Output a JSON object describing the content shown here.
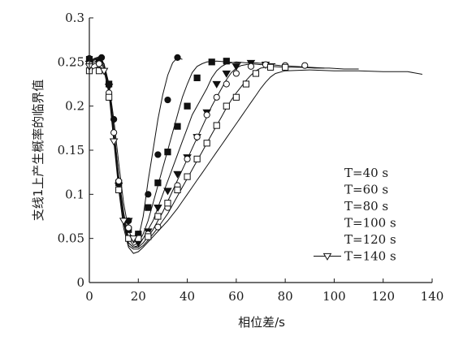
{
  "chart_data": {
    "type": "line",
    "xlabel": "相位差/s",
    "ylabel": "支线1上产生概率的临界值",
    "xlim": [
      0,
      140
    ],
    "ylim": [
      0,
      0.3
    ],
    "x_ticks": [
      0,
      20,
      40,
      60,
      80,
      100,
      120,
      140
    ],
    "y_ticks": [
      0,
      0.05,
      0.1,
      0.15,
      0.2,
      0.25,
      0.3
    ],
    "x_tick_labels": [
      "0",
      "20",
      "40",
      "60",
      "80",
      "100",
      "120",
      "140"
    ],
    "y_tick_labels": [
      "0",
      "0.05",
      "0.1",
      "0.15",
      "0.2",
      "0.25",
      "0.3"
    ],
    "legend_position": "right",
    "series": [
      {
        "name": "T=40 s",
        "marker": "filled-circle",
        "line": [
          [
            0,
            0.25
          ],
          [
            2,
            0.254
          ],
          [
            4,
            0.256
          ],
          [
            6,
            0.248
          ],
          [
            8,
            0.225
          ],
          [
            10,
            0.185
          ],
          [
            12,
            0.135
          ],
          [
            14,
            0.09
          ],
          [
            16,
            0.06
          ],
          [
            18,
            0.045
          ],
          [
            20,
            0.05
          ],
          [
            22,
            0.075
          ],
          [
            24,
            0.115
          ],
          [
            26,
            0.15
          ],
          [
            28,
            0.185
          ],
          [
            30,
            0.213
          ],
          [
            32,
            0.235
          ],
          [
            34,
            0.249
          ],
          [
            36,
            0.255
          ],
          [
            38,
            0.253
          ]
        ],
        "markers": [
          [
            0,
            0.254
          ],
          [
            5,
            0.255
          ],
          [
            8,
            0.225
          ],
          [
            10,
            0.185
          ],
          [
            12,
            0.113
          ],
          [
            16,
            0.07
          ],
          [
            20,
            0.055
          ],
          [
            24,
            0.1
          ],
          [
            28,
            0.145
          ],
          [
            32,
            0.207
          ],
          [
            36,
            0.255
          ]
        ]
      },
      {
        "name": "T=60 s",
        "marker": "filled-square",
        "line": [
          [
            0,
            0.25
          ],
          [
            2,
            0.253
          ],
          [
            4,
            0.255
          ],
          [
            6,
            0.247
          ],
          [
            8,
            0.225
          ],
          [
            10,
            0.175
          ],
          [
            12,
            0.12
          ],
          [
            14,
            0.08
          ],
          [
            16,
            0.05
          ],
          [
            18,
            0.042
          ],
          [
            20,
            0.045
          ],
          [
            22,
            0.055
          ],
          [
            24,
            0.07
          ],
          [
            26,
            0.09
          ],
          [
            28,
            0.11
          ],
          [
            30,
            0.13
          ],
          [
            32,
            0.15
          ],
          [
            34,
            0.17
          ],
          [
            36,
            0.19
          ],
          [
            38,
            0.21
          ],
          [
            40,
            0.225
          ],
          [
            42,
            0.238
          ],
          [
            44,
            0.245
          ],
          [
            46,
            0.248
          ],
          [
            48,
            0.25
          ],
          [
            52,
            0.251
          ],
          [
            56,
            0.25
          ],
          [
            60,
            0.249
          ],
          [
            62,
            0.249
          ]
        ],
        "markers": [
          [
            0,
            0.253
          ],
          [
            4,
            0.25
          ],
          [
            8,
            0.225
          ],
          [
            12,
            0.113
          ],
          [
            16,
            0.06
          ],
          [
            20,
            0.055
          ],
          [
            24,
            0.085
          ],
          [
            28,
            0.113
          ],
          [
            32,
            0.148
          ],
          [
            36,
            0.177
          ],
          [
            40,
            0.2
          ],
          [
            44,
            0.232
          ],
          [
            50,
            0.25
          ],
          [
            56,
            0.251
          ]
        ]
      },
      {
        "name": "T=80 s",
        "marker": "filled-triangle-down",
        "line": [
          [
            0,
            0.25
          ],
          [
            2,
            0.252
          ],
          [
            4,
            0.254
          ],
          [
            6,
            0.247
          ],
          [
            8,
            0.222
          ],
          [
            10,
            0.175
          ],
          [
            12,
            0.12
          ],
          [
            14,
            0.075
          ],
          [
            16,
            0.045
          ],
          [
            18,
            0.04
          ],
          [
            20,
            0.042
          ],
          [
            22,
            0.05
          ],
          [
            24,
            0.06
          ],
          [
            26,
            0.07
          ],
          [
            28,
            0.085
          ],
          [
            30,
            0.1
          ],
          [
            32,
            0.115
          ],
          [
            34,
            0.13
          ],
          [
            36,
            0.145
          ],
          [
            38,
            0.16
          ],
          [
            40,
            0.175
          ],
          [
            42,
            0.19
          ],
          [
            44,
            0.2
          ],
          [
            46,
            0.21
          ],
          [
            48,
            0.22
          ],
          [
            50,
            0.232
          ],
          [
            52,
            0.24
          ],
          [
            54,
            0.245
          ],
          [
            56,
            0.248
          ],
          [
            60,
            0.25
          ],
          [
            64,
            0.249
          ],
          [
            68,
            0.249
          ],
          [
            72,
            0.248
          ],
          [
            76,
            0.248
          ]
        ],
        "markers": [
          [
            0,
            0.248
          ],
          [
            4,
            0.248
          ],
          [
            8,
            0.222
          ],
          [
            12,
            0.11
          ],
          [
            16,
            0.07
          ],
          [
            20,
            0.045
          ],
          [
            24,
            0.058
          ],
          [
            28,
            0.085
          ],
          [
            32,
            0.104
          ],
          [
            36,
            0.123
          ],
          [
            40,
            0.142
          ],
          [
            44,
            0.165
          ],
          [
            48,
            0.193
          ],
          [
            52,
            0.225
          ],
          [
            56,
            0.237
          ],
          [
            60,
            0.245
          ],
          [
            66,
            0.249
          ],
          [
            72,
            0.247
          ]
        ]
      },
      {
        "name": "T=100 s",
        "marker": "open-circle",
        "line": [
          [
            0,
            0.248
          ],
          [
            2,
            0.25
          ],
          [
            4,
            0.252
          ],
          [
            6,
            0.245
          ],
          [
            8,
            0.22
          ],
          [
            10,
            0.17
          ],
          [
            12,
            0.115
          ],
          [
            14,
            0.07
          ],
          [
            16,
            0.045
          ],
          [
            18,
            0.04
          ],
          [
            20,
            0.04
          ],
          [
            22,
            0.045
          ],
          [
            24,
            0.052
          ],
          [
            26,
            0.06
          ],
          [
            28,
            0.07
          ],
          [
            30,
            0.08
          ],
          [
            32,
            0.092
          ],
          [
            34,
            0.104
          ],
          [
            36,
            0.116
          ],
          [
            38,
            0.128
          ],
          [
            40,
            0.14
          ],
          [
            42,
            0.152
          ],
          [
            44,
            0.164
          ],
          [
            46,
            0.176
          ],
          [
            48,
            0.188
          ],
          [
            50,
            0.2
          ],
          [
            52,
            0.21
          ],
          [
            54,
            0.22
          ],
          [
            56,
            0.23
          ],
          [
            58,
            0.238
          ],
          [
            60,
            0.243
          ],
          [
            62,
            0.246
          ],
          [
            66,
            0.248
          ],
          [
            70,
            0.247
          ],
          [
            74,
            0.247
          ],
          [
            78,
            0.246
          ],
          [
            84,
            0.245
          ],
          [
            90,
            0.244
          ],
          [
            96,
            0.243
          ]
        ],
        "markers": [
          [
            0,
            0.248
          ],
          [
            4,
            0.248
          ],
          [
            8,
            0.215
          ],
          [
            10,
            0.17
          ],
          [
            12,
            0.115
          ],
          [
            16,
            0.062
          ],
          [
            20,
            0.05
          ],
          [
            24,
            0.055
          ],
          [
            28,
            0.063
          ],
          [
            32,
            0.085
          ],
          [
            36,
            0.11
          ],
          [
            40,
            0.14
          ],
          [
            44,
            0.165
          ],
          [
            48,
            0.19
          ],
          [
            52,
            0.21
          ],
          [
            56,
            0.225
          ],
          [
            60,
            0.237
          ],
          [
            66,
            0.245
          ],
          [
            72,
            0.247
          ],
          [
            80,
            0.246
          ],
          [
            88,
            0.246
          ]
        ]
      },
      {
        "name": "T=120 s",
        "marker": "open-square",
        "line": [
          [
            0,
            0.245
          ],
          [
            2,
            0.248
          ],
          [
            4,
            0.25
          ],
          [
            6,
            0.243
          ],
          [
            8,
            0.218
          ],
          [
            10,
            0.165
          ],
          [
            12,
            0.11
          ],
          [
            14,
            0.068
          ],
          [
            16,
            0.042
          ],
          [
            18,
            0.038
          ],
          [
            20,
            0.038
          ],
          [
            22,
            0.042
          ],
          [
            24,
            0.048
          ],
          [
            26,
            0.055
          ],
          [
            28,
            0.062
          ],
          [
            30,
            0.07
          ],
          [
            32,
            0.078
          ],
          [
            34,
            0.088
          ],
          [
            36,
            0.098
          ],
          [
            38,
            0.108
          ],
          [
            40,
            0.118
          ],
          [
            42,
            0.128
          ],
          [
            44,
            0.138
          ],
          [
            46,
            0.148
          ],
          [
            48,
            0.158
          ],
          [
            50,
            0.168
          ],
          [
            52,
            0.178
          ],
          [
            54,
            0.188
          ],
          [
            56,
            0.198
          ],
          [
            58,
            0.207
          ],
          [
            60,
            0.215
          ],
          [
            62,
            0.222
          ],
          [
            64,
            0.229
          ],
          [
            66,
            0.235
          ],
          [
            68,
            0.24
          ],
          [
            70,
            0.243
          ],
          [
            74,
            0.245
          ],
          [
            80,
            0.244
          ],
          [
            86,
            0.244
          ],
          [
            92,
            0.243
          ],
          [
            98,
            0.243
          ],
          [
            104,
            0.242
          ],
          [
            110,
            0.242
          ]
        ],
        "markers": [
          [
            0,
            0.24
          ],
          [
            4,
            0.24
          ],
          [
            8,
            0.21
          ],
          [
            12,
            0.105
          ],
          [
            16,
            0.05
          ],
          [
            20,
            0.05
          ],
          [
            24,
            0.052
          ],
          [
            28,
            0.075
          ],
          [
            32,
            0.09
          ],
          [
            36,
            0.105
          ],
          [
            40,
            0.12
          ],
          [
            44,
            0.14
          ],
          [
            48,
            0.158
          ],
          [
            52,
            0.178
          ],
          [
            56,
            0.2
          ],
          [
            60,
            0.21
          ],
          [
            64,
            0.225
          ],
          [
            68,
            0.237
          ],
          [
            74,
            0.244
          ],
          [
            80,
            0.244
          ]
        ]
      },
      {
        "name": "T=140 s",
        "marker": "open-triangle-down",
        "line": [
          [
            0,
            0.24
          ],
          [
            2,
            0.243
          ],
          [
            4,
            0.245
          ],
          [
            6,
            0.24
          ],
          [
            8,
            0.215
          ],
          [
            10,
            0.16
          ],
          [
            12,
            0.105
          ],
          [
            14,
            0.062
          ],
          [
            16,
            0.04
          ],
          [
            18,
            0.033
          ],
          [
            20,
            0.035
          ],
          [
            22,
            0.04
          ],
          [
            24,
            0.046
          ],
          [
            26,
            0.052
          ],
          [
            28,
            0.058
          ],
          [
            30,
            0.064
          ],
          [
            32,
            0.07
          ],
          [
            34,
            0.077
          ],
          [
            36,
            0.084
          ],
          [
            38,
            0.092
          ],
          [
            40,
            0.1
          ],
          [
            42,
            0.108
          ],
          [
            44,
            0.116
          ],
          [
            46,
            0.124
          ],
          [
            48,
            0.132
          ],
          [
            50,
            0.14
          ],
          [
            52,
            0.148
          ],
          [
            54,
            0.156
          ],
          [
            56,
            0.164
          ],
          [
            58,
            0.172
          ],
          [
            60,
            0.18
          ],
          [
            62,
            0.188
          ],
          [
            64,
            0.196
          ],
          [
            66,
            0.204
          ],
          [
            68,
            0.212
          ],
          [
            70,
            0.22
          ],
          [
            72,
            0.227
          ],
          [
            74,
            0.233
          ],
          [
            76,
            0.237
          ],
          [
            80,
            0.24
          ],
          [
            90,
            0.241
          ],
          [
            100,
            0.24
          ],
          [
            110,
            0.24
          ],
          [
            120,
            0.239
          ],
          [
            130,
            0.239
          ],
          [
            136,
            0.236
          ]
        ],
        "markers": [
          [
            0,
            0.245
          ],
          [
            6,
            0.24
          ],
          [
            10,
            0.16
          ],
          [
            14,
            0.07
          ],
          [
            18,
            0.05
          ]
        ]
      }
    ]
  }
}
